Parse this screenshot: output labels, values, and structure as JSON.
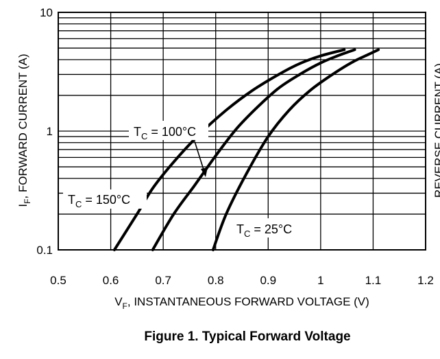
{
  "chart_data": {
    "type": "line",
    "caption": "Figure 1. Typical Forward Voltage",
    "xlabel": {
      "prefix": "V",
      "sub": "F",
      "rest": ", INSTANTANEOUS FORWARD VOLTAGE (V)"
    },
    "ylabel": {
      "prefix": "I",
      "sub": "F",
      "rest": ", FORWARD CURRENT (A)"
    },
    "right_axis_fragment": "REVERSE CURRENT (A)",
    "xlim": [
      0.5,
      1.2
    ],
    "ylim": [
      0.1,
      10
    ],
    "yscale": "log",
    "grid": true,
    "x_ticks": [
      "0.5",
      "0.6",
      "0.7",
      "0.8",
      "0.9",
      "1",
      "1.1",
      "1.2"
    ],
    "y_ticks": [
      "0.1",
      "1",
      "10"
    ],
    "series": [
      {
        "name": "TC = 150°C",
        "label": {
          "t": "T",
          "sub": "C",
          "rest": " = 150°C"
        },
        "x": [
          0.607,
          0.65,
          0.68,
          0.72,
          0.77,
          0.82,
          0.87,
          0.92,
          0.96,
          1.0,
          1.045
        ],
        "y": [
          0.1,
          0.2,
          0.33,
          0.55,
          0.95,
          1.5,
          2.2,
          3.0,
          3.7,
          4.3,
          4.85
        ]
      },
      {
        "name": "TC = 100°C",
        "label": {
          "t": "T",
          "sub": "C",
          "rest": " = 100°C"
        },
        "x": [
          0.68,
          0.72,
          0.76,
          0.8,
          0.84,
          0.88,
          0.92,
          0.96,
          1.0,
          1.035,
          1.065
        ],
        "y": [
          0.1,
          0.2,
          0.35,
          0.62,
          1.05,
          1.6,
          2.3,
          3.0,
          3.75,
          4.35,
          4.85
        ]
      },
      {
        "name": "TC = 25°C",
        "label": {
          "t": "T",
          "sub": "C",
          "rest": " = 25°C"
        },
        "x": [
          0.795,
          0.82,
          0.86,
          0.9,
          0.94,
          0.98,
          1.02,
          1.06,
          1.09,
          1.11
        ],
        "y": [
          0.1,
          0.2,
          0.45,
          0.9,
          1.5,
          2.2,
          2.95,
          3.8,
          4.4,
          4.85
        ]
      }
    ]
  }
}
